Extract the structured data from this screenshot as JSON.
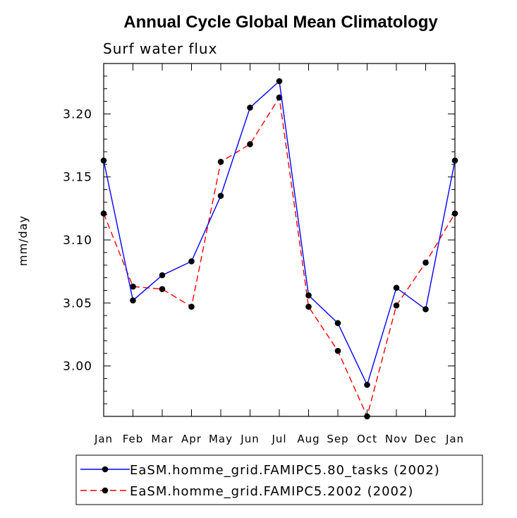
{
  "chart_data": {
    "type": "line",
    "title": "Annual Cycle Global Mean Climatology",
    "subtitle": "Surf water flux",
    "xlabel": "",
    "ylabel": "mm/day",
    "categories": [
      "Jan",
      "Feb",
      "Mar",
      "Apr",
      "May",
      "Jun",
      "Jul",
      "Aug",
      "Sep",
      "Oct",
      "Nov",
      "Dec",
      "Jan"
    ],
    "ylim": [
      2.96,
      3.24
    ],
    "yticks": [
      3.0,
      3.05,
      3.1,
      3.15,
      3.2
    ],
    "ytick_labels": [
      "3.00",
      "3.05",
      "3.10",
      "3.15",
      "3.20"
    ],
    "series": [
      {
        "name": "EaSM.homme_grid.FAMIPC5.80_tasks (2002)",
        "color": "#0000ff",
        "dash": "solid",
        "values": [
          3.163,
          3.052,
          3.072,
          3.083,
          3.135,
          3.205,
          3.226,
          3.056,
          3.034,
          2.985,
          3.062,
          3.045,
          3.163
        ]
      },
      {
        "name": "EaSM.homme_grid.FAMIPC5.2002 (2002)",
        "color": "#ff0000",
        "dash": "dashed",
        "values": [
          3.121,
          3.063,
          3.061,
          3.047,
          3.162,
          3.176,
          3.213,
          3.047,
          3.012,
          2.96,
          3.048,
          3.082,
          3.121
        ]
      }
    ],
    "grid": false,
    "legend_position": "bottom"
  }
}
